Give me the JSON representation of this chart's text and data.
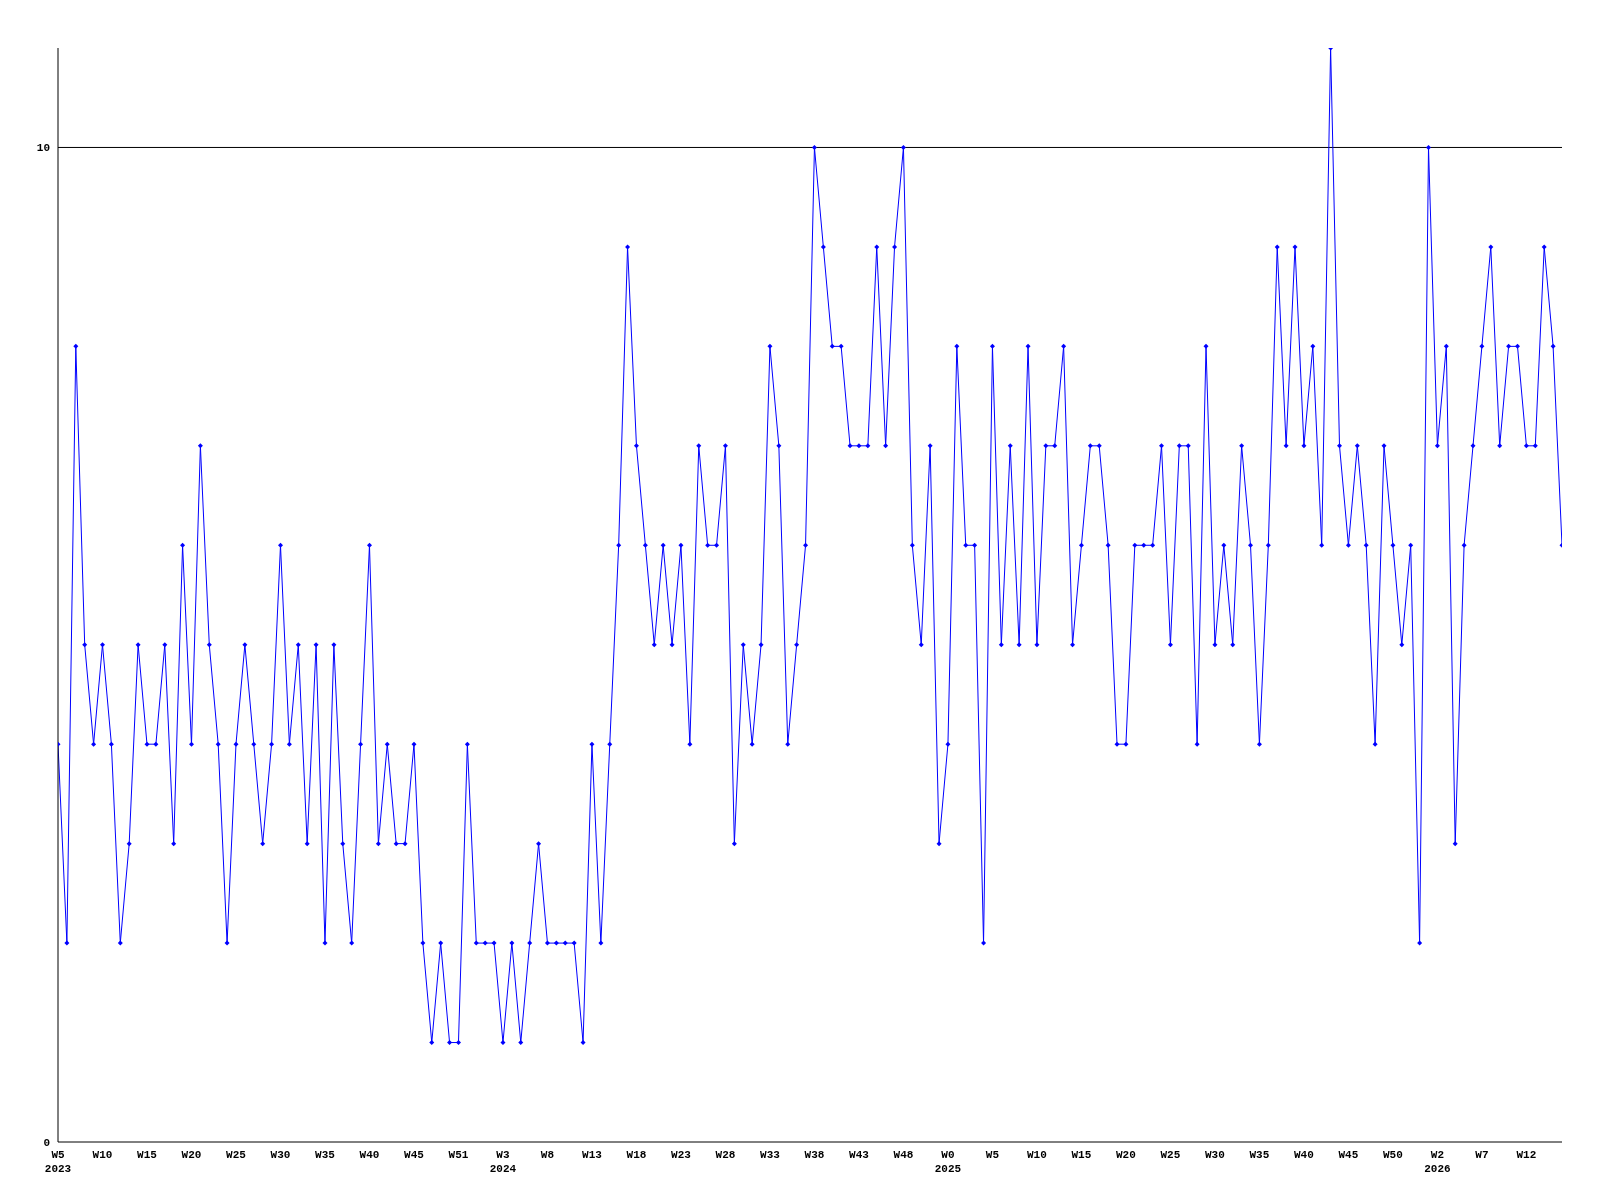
{
  "chart_data": {
    "type": "line",
    "categories": [
      "W5\n2023",
      null,
      null,
      null,
      null,
      "W10",
      null,
      null,
      null,
      null,
      "W15",
      null,
      null,
      null,
      null,
      "W20",
      null,
      null,
      null,
      null,
      "W25",
      null,
      null,
      null,
      null,
      "W30",
      null,
      null,
      null,
      null,
      "W35",
      null,
      null,
      null,
      null,
      "W40",
      null,
      null,
      null,
      null,
      "W45",
      null,
      null,
      null,
      null,
      "W51",
      null,
      null,
      null,
      null,
      "W3\n2024",
      null,
      null,
      null,
      null,
      "W8",
      null,
      null,
      null,
      null,
      "W13",
      null,
      null,
      null,
      null,
      "W18",
      null,
      null,
      null,
      null,
      "W23",
      null,
      null,
      null,
      null,
      "W28",
      null,
      null,
      null,
      null,
      "W33",
      null,
      null,
      null,
      null,
      "W38",
      null,
      null,
      null,
      null,
      "W43",
      null,
      null,
      null,
      null,
      "W48",
      null,
      null,
      null,
      null,
      "W0\n2025",
      null,
      null,
      null,
      null,
      "W5",
      null,
      null,
      null,
      null,
      "W10",
      null,
      null,
      null,
      null,
      "W15",
      null,
      null,
      null,
      null,
      "W20",
      null,
      null,
      null,
      null,
      "W25",
      null,
      null,
      null,
      null,
      "W30",
      null,
      null,
      null,
      null,
      "W35",
      null,
      null,
      null,
      null,
      "W40",
      null,
      null,
      null,
      null,
      "W45",
      null,
      null,
      null,
      null,
      "W50",
      null,
      null,
      null,
      null,
      "W2\n2026",
      null,
      null,
      null,
      null,
      "W7",
      null,
      null,
      null,
      null,
      "W12",
      null,
      null,
      null,
      null
    ],
    "series": [
      {
        "color": "#0000ff",
        "values": [
          4,
          2,
          8,
          5,
          4,
          5,
          4,
          2,
          3,
          5,
          4,
          4,
          5,
          3,
          6,
          4,
          7,
          5,
          4,
          2,
          4,
          5,
          4,
          3,
          4,
          6,
          4,
          5,
          3,
          5,
          2,
          5,
          3,
          2,
          4,
          6,
          3,
          4,
          3,
          3,
          4,
          2,
          1,
          2,
          1,
          1,
          4,
          2,
          2,
          2,
          1,
          2,
          1,
          2,
          3,
          2,
          2,
          2,
          2,
          1,
          4,
          2,
          4,
          6,
          9,
          7,
          6,
          5,
          6,
          5,
          6,
          4,
          7,
          6,
          6,
          7,
          3,
          5,
          4,
          5,
          8,
          7,
          4,
          5,
          6,
          10,
          9,
          8,
          8,
          7,
          7,
          7,
          9,
          7,
          9,
          10,
          6,
          5,
          7,
          3,
          4,
          8,
          6,
          6,
          2,
          8,
          5,
          7,
          5,
          8,
          5,
          7,
          7,
          8,
          5,
          6,
          7,
          7,
          6,
          4,
          4,
          6,
          6,
          6,
          7,
          5,
          7,
          7,
          4,
          8,
          5,
          6,
          5,
          7,
          6,
          4,
          6,
          9,
          7,
          9,
          7,
          8,
          6,
          11,
          7,
          6,
          7,
          6,
          4,
          7,
          6,
          5,
          6,
          2,
          10,
          7,
          8,
          3,
          6,
          7,
          8,
          9,
          7,
          8,
          8,
          7,
          7,
          9,
          8,
          6
        ]
      }
    ],
    "ylim": [
      0,
      11
    ],
    "yticks": [
      0,
      10
    ],
    "grid": "y",
    "marker": "diamond",
    "line_style": "solid"
  }
}
